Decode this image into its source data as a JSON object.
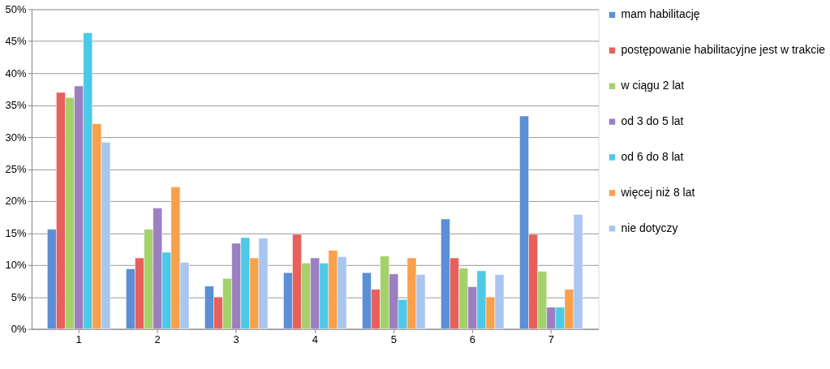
{
  "chart_data": {
    "type": "bar",
    "categories": [
      "1",
      "2",
      "3",
      "4",
      "5",
      "6",
      "7"
    ],
    "series": [
      {
        "name": "mam habilitację",
        "color": "#5b8fd6",
        "values": [
          15.6,
          9.4,
          6.7,
          8.8,
          8.8,
          17.2,
          33.3
        ]
      },
      {
        "name": "postępowanie habilitacyjne jest w trakcie",
        "color": "#e8605c",
        "values": [
          37.0,
          11.1,
          5.0,
          14.8,
          6.2,
          11.1,
          14.8
        ]
      },
      {
        "name": "w ciągu 2 lat",
        "color": "#a5d16a",
        "values": [
          36.2,
          15.6,
          7.9,
          10.3,
          11.4,
          9.5,
          9.0
        ]
      },
      {
        "name": "od 3 do 5 lat",
        "color": "#9b7fc0",
        "values": [
          38.0,
          18.9,
          13.4,
          11.1,
          8.6,
          6.6,
          3.4
        ]
      },
      {
        "name": "od 6 do 8 lat",
        "color": "#4cc9e6",
        "values": [
          46.3,
          12.0,
          14.3,
          10.3,
          4.6,
          9.1,
          3.4
        ]
      },
      {
        "name": "więcej niż 8 lat",
        "color": "#f9a04a",
        "values": [
          32.1,
          22.2,
          11.1,
          12.3,
          11.1,
          5.0,
          6.2
        ]
      },
      {
        "name": "nie dotyczy",
        "color": "#a9c6f0",
        "values": [
          29.2,
          10.4,
          14.2,
          11.3,
          8.5,
          8.5,
          17.9
        ]
      }
    ],
    "ylim": [
      0,
      50
    ],
    "yticks": [
      {
        "value": 0,
        "label": "0%"
      },
      {
        "value": 5,
        "label": "5%"
      },
      {
        "value": 10,
        "label": "10%"
      },
      {
        "value": 15,
        "label": "15%"
      },
      {
        "value": 20,
        "label": "20%"
      },
      {
        "value": 25,
        "label": "25%"
      },
      {
        "value": 30,
        "label": "30%"
      },
      {
        "value": 35,
        "label": "35%"
      },
      {
        "value": 40,
        "label": "40%"
      },
      {
        "value": 45,
        "label": "45%"
      },
      {
        "value": 50,
        "label": "50%"
      }
    ],
    "grid": "y",
    "legend": "right"
  }
}
